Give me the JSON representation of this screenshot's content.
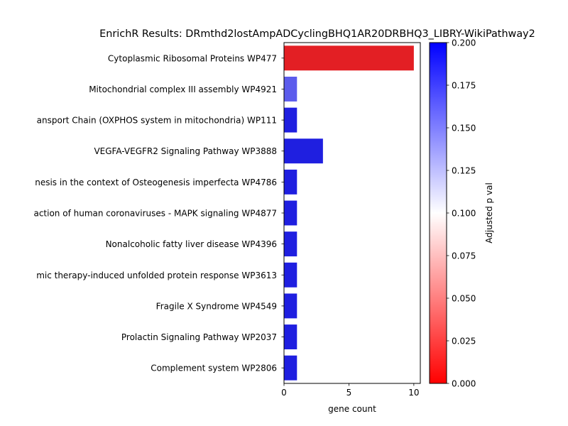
{
  "chart_data": {
    "type": "bar",
    "orientation": "horizontal",
    "title": "EnrichR Results: DRmthd2lostAmpADCyclingBHQ1AR20DRBHQ3_LIBRY-WikiPathway2",
    "xlabel": "gene count",
    "ylabel": "",
    "xlim": [
      0,
      10.5
    ],
    "xticks": [
      0,
      5,
      10
    ],
    "grid": false,
    "categories": [
      "Cytoplasmic Ribosomal Proteins WP477",
      "Mitochondrial complex III assembly WP4921",
      "ansport Chain (OXPHOS system in mitochondria) WP111",
      "VEGFA-VEGFR2 Signaling Pathway WP3888",
      "nesis in the context of Osteogenesis imperfecta WP4786",
      "action of human coronaviruses - MAPK signaling WP4877",
      "Nonalcoholic fatty liver disease WP4396",
      "mic therapy-induced unfolded protein response WP3613",
      "Fragile X Syndrome  WP4549",
      "Prolactin Signaling Pathway WP2037",
      "Complement system WP2806"
    ],
    "values": [
      10,
      1,
      1,
      3,
      1,
      1,
      1,
      1,
      1,
      1,
      1
    ],
    "bar_colors": [
      "#e31f24",
      "#5c5cec",
      "#1f1fe0",
      "#1f1fe0",
      "#1f1fe0",
      "#1f1fe0",
      "#1f1fe0",
      "#1f1fe0",
      "#1f1fe0",
      "#1f1fe0",
      "#1f1fe0"
    ],
    "colorbar": {
      "label": "Adjusted p val",
      "range": [
        0,
        0.2
      ],
      "ticks": [
        "0.000",
        "0.025",
        "0.050",
        "0.075",
        "0.100",
        "0.125",
        "0.150",
        "0.175",
        "0.200"
      ],
      "colormap": [
        "#ff0000",
        "#ffffff",
        "#0000ff"
      ]
    }
  }
}
